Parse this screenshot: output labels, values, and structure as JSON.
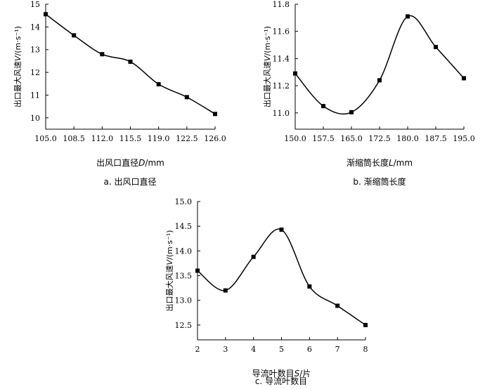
{
  "chart_data": [
    {
      "id": "a",
      "type": "line",
      "caption": "a.  出风口直径",
      "xlabel_prefix": "出风口直径",
      "xlabel_var": "D",
      "xlabel_unit": "/mm",
      "ylabel_prefix": "出口最大风速",
      "ylabel_var": "V",
      "ylabel_unit": "/(m·s⁻¹)",
      "x_ticks": [
        "105.0",
        "108.5",
        "112.0",
        "115.5",
        "119.0",
        "122.5",
        "126.0"
      ],
      "y_ticks": [
        "10",
        "11",
        "12",
        "13",
        "14",
        "15"
      ],
      "xlim": [
        105.0,
        126.0
      ],
      "ylim": [
        9.5,
        15.0
      ],
      "x": [
        105.0,
        108.5,
        112.0,
        115.5,
        119.0,
        122.5,
        126.0
      ],
      "y": [
        14.56,
        13.63,
        12.8,
        12.47,
        11.48,
        10.91,
        10.17
      ],
      "grid": false,
      "smooth": true
    },
    {
      "id": "b",
      "type": "line",
      "caption": "b.  渐缩筒长度",
      "xlabel_prefix": "渐缩筒长度",
      "xlabel_var": "L",
      "xlabel_unit": "/mm",
      "ylabel_prefix": "出口最大风速",
      "ylabel_var": "V",
      "ylabel_unit": "/(m·s⁻¹)",
      "x_ticks": [
        "150.0",
        "157.5",
        "165.0",
        "172.5",
        "180.0",
        "187.5",
        "195.0"
      ],
      "y_ticks": [
        "11.0",
        "11.2",
        "11.4",
        "11.6",
        "11.8"
      ],
      "xlim": [
        150.0,
        195.0
      ],
      "ylim": [
        10.88,
        11.8
      ],
      "x": [
        150.0,
        157.5,
        165.0,
        172.5,
        180.0,
        187.5,
        195.0
      ],
      "y": [
        11.29,
        11.05,
        11.005,
        11.24,
        11.71,
        11.485,
        11.255
      ],
      "grid": false,
      "smooth": true
    },
    {
      "id": "c",
      "type": "line",
      "caption": "c.  导流叶数目",
      "xlabel_prefix": "导流叶数目",
      "xlabel_var": "S",
      "xlabel_unit": "/片",
      "ylabel_prefix": "出口最大风速",
      "ylabel_var": "V",
      "ylabel_unit": "/(m·s⁻¹)",
      "x_ticks": [
        "2",
        "3",
        "4",
        "5",
        "6",
        "7",
        "8"
      ],
      "y_ticks": [
        "12.5",
        "13.0",
        "13.5",
        "14.0",
        "14.5",
        "15.0"
      ],
      "xlim": [
        2,
        8
      ],
      "ylim": [
        12.2,
        15.0
      ],
      "x": [
        2,
        3,
        4,
        5,
        6,
        7,
        8
      ],
      "y": [
        13.6,
        13.2,
        13.88,
        14.43,
        13.28,
        12.89,
        12.5
      ],
      "grid": false,
      "smooth": true
    }
  ]
}
